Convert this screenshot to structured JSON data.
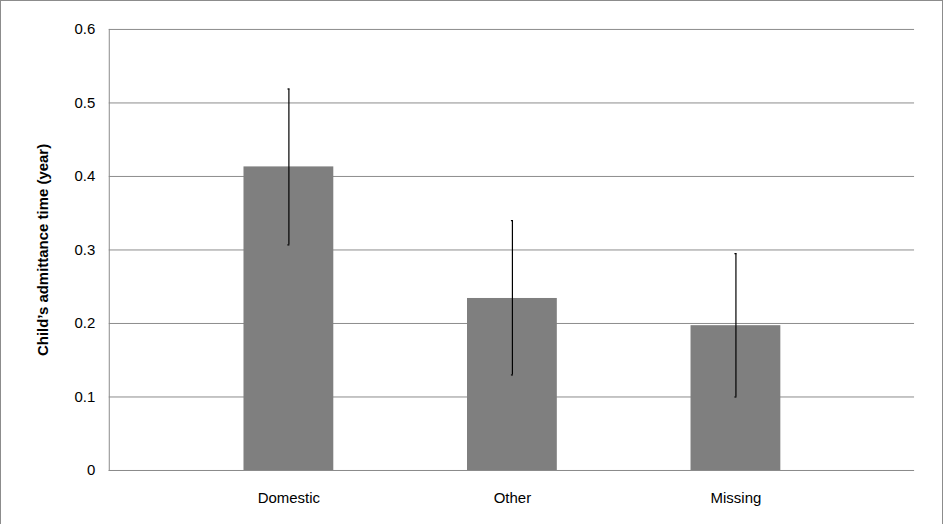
{
  "chart_data": {
    "type": "bar",
    "y_label": "Child’s admittance time (year)",
    "categories": [
      "Domestic",
      "Other",
      "Missing"
    ],
    "values": [
      0.413,
      0.234,
      0.197
    ],
    "error_low": [
      0.307,
      0.13,
      0.1
    ],
    "error_high": [
      0.519,
      0.34,
      0.295
    ],
    "color": "#7f7f7f",
    "ylim": [
      0,
      0.6
    ],
    "yticks": [
      0,
      0.1,
      0.2,
      0.3,
      0.4,
      0.5,
      0.6
    ],
    "grid": true
  }
}
